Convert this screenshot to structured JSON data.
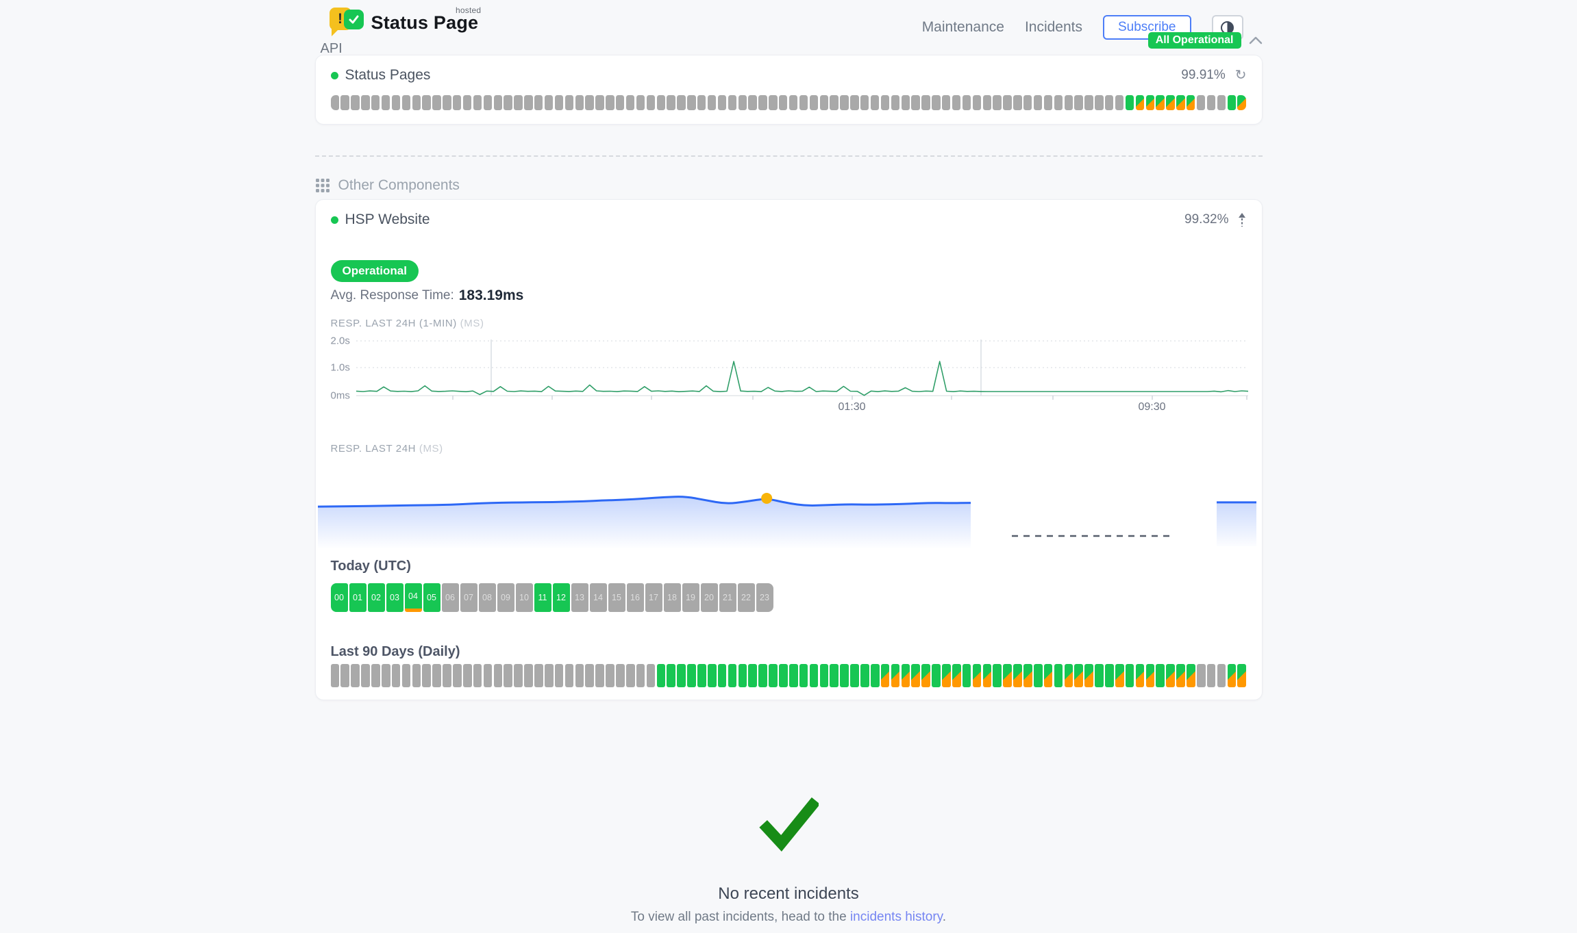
{
  "colors": {
    "green": "#17c653",
    "orange": "#ff9800",
    "bar_gray": "#a9a9a9",
    "accent_blue": "#4d7ef7",
    "link": "#7585f2",
    "chart_line_green": "#2f9e68",
    "chart_line_blue": "#2d68f5",
    "highlight_dot": "#f8b40a",
    "check_green": "#178c17"
  },
  "header": {
    "brand_name": "Status Page",
    "brand_superscript": "hosted",
    "nav": {
      "maintenance": "Maintenance",
      "incidents": "Incidents"
    },
    "subscribe_label": "Subscribe",
    "overall_status": "All Operational"
  },
  "api_group": {
    "title": "API",
    "component_name": "Status Pages",
    "uptime_pct": "99.91%",
    "uptime_bars": "nnnnnnnnnnnnnnnnnnnnnnnnnnnnnnnnnnnnnnnnnnnnnnnnnnnnnnnnnnnnnnnnnnnnnnnnnnnnnnuppppppnnnup"
  },
  "other": {
    "title": "Other Components",
    "component_name": "HSP Website",
    "uptime_pct": "99.32%",
    "status_label": "Operational",
    "avg_label": "Avg. Response Time:",
    "avg_value": "183.19ms",
    "chart1": {
      "type": "line",
      "title": "RESP. LAST 24H (1-MIN)",
      "unit": "(MS)",
      "y_ticks": [
        "2.0s",
        "1.0s",
        "0ms"
      ],
      "x_ticks": [
        "01:30",
        "09:30"
      ],
      "y_max_ms": 2000,
      "values_ms": [
        165,
        150,
        172,
        158,
        320,
        170,
        155,
        162,
        148,
        175,
        360,
        168,
        152,
        160,
        174,
        158,
        146,
        170,
        40,
        168,
        155,
        330,
        162,
        150,
        172,
        158,
        165,
        148,
        340,
        170,
        160,
        152,
        168,
        155,
        390,
        175,
        158,
        162,
        148,
        170,
        165,
        152,
        330,
        160,
        174,
        155,
        168,
        146,
        158,
        170,
        152,
        360,
        165,
        148,
        162,
        1250,
        170,
        155,
        160,
        148,
        300,
        168,
        152,
        174,
        158,
        165,
        310,
        150,
        170,
        160,
        155,
        340,
        162,
        158,
        10,
        168,
        148,
        172,
        155,
        165,
        290,
        160,
        150,
        168,
        158,
        1250,
        162,
        148,
        170,
        155,
        160,
        152,
        150,
        150,
        150,
        150,
        150,
        150,
        150,
        150,
        150,
        150,
        150,
        150,
        150,
        150,
        150,
        150,
        150,
        150,
        150,
        150,
        150,
        150,
        150,
        150,
        150,
        150,
        150,
        150,
        150,
        150,
        150,
        150,
        150,
        165,
        140,
        185,
        150,
        175,
        160
      ]
    },
    "chart2": {
      "type": "area",
      "title": "RESP. LAST 24H",
      "unit": "(MS)",
      "levels": [
        0.27,
        0.28,
        0.3,
        0.32,
        0.34,
        0.36,
        0.38,
        0.42,
        0.5,
        0.53,
        0.55,
        0.56,
        0.58,
        0.62,
        0.68,
        0.72,
        0.8,
        0.9,
        0.95,
        0.7,
        0.45,
        0.6,
        0.82,
        0.5,
        0.32,
        0.38,
        0.42,
        0.4,
        0.42,
        0.45,
        0.52,
        0.5,
        0.52
      ],
      "highlight_index": 22,
      "has_gap": true,
      "tail_level": 0.55
    },
    "today": {
      "title": "Today (UTC)",
      "hours": [
        {
          "label": "00",
          "status": "up"
        },
        {
          "label": "01",
          "status": "up"
        },
        {
          "label": "02",
          "status": "up"
        },
        {
          "label": "03",
          "status": "up"
        },
        {
          "label": "04",
          "status": "up-degraded"
        },
        {
          "label": "05",
          "status": "up"
        },
        {
          "label": "06",
          "status": "nodata"
        },
        {
          "label": "07",
          "status": "nodata"
        },
        {
          "label": "08",
          "status": "nodata"
        },
        {
          "label": "09",
          "status": "nodata"
        },
        {
          "label": "10",
          "status": "nodata"
        },
        {
          "label": "11",
          "status": "up"
        },
        {
          "label": "12",
          "status": "up"
        },
        {
          "label": "13",
          "status": "nodata"
        },
        {
          "label": "14",
          "status": "nodata"
        },
        {
          "label": "15",
          "status": "nodata"
        },
        {
          "label": "16",
          "status": "nodata"
        },
        {
          "label": "17",
          "status": "nodata"
        },
        {
          "label": "18",
          "status": "nodata"
        },
        {
          "label": "19",
          "status": "nodata"
        },
        {
          "label": "20",
          "status": "nodata"
        },
        {
          "label": "21",
          "status": "nodata"
        },
        {
          "label": "22",
          "status": "nodata"
        },
        {
          "label": "23",
          "status": "nodata"
        }
      ]
    },
    "last90": {
      "title": "Last 90 Days (Daily)",
      "bars": "nnnnnnnnnnnnnnnnnnnnnnnnnnnnnnnnuuuuuuuuuuuuuuuuuuuuuupppppuppuppupppupupppuupuppupppnnnpp"
    }
  },
  "footer": {
    "title": "No recent incidents",
    "hint_prefix": "To view all past incidents, head to the ",
    "link_label": "incidents history",
    "hint_suffix": "."
  }
}
